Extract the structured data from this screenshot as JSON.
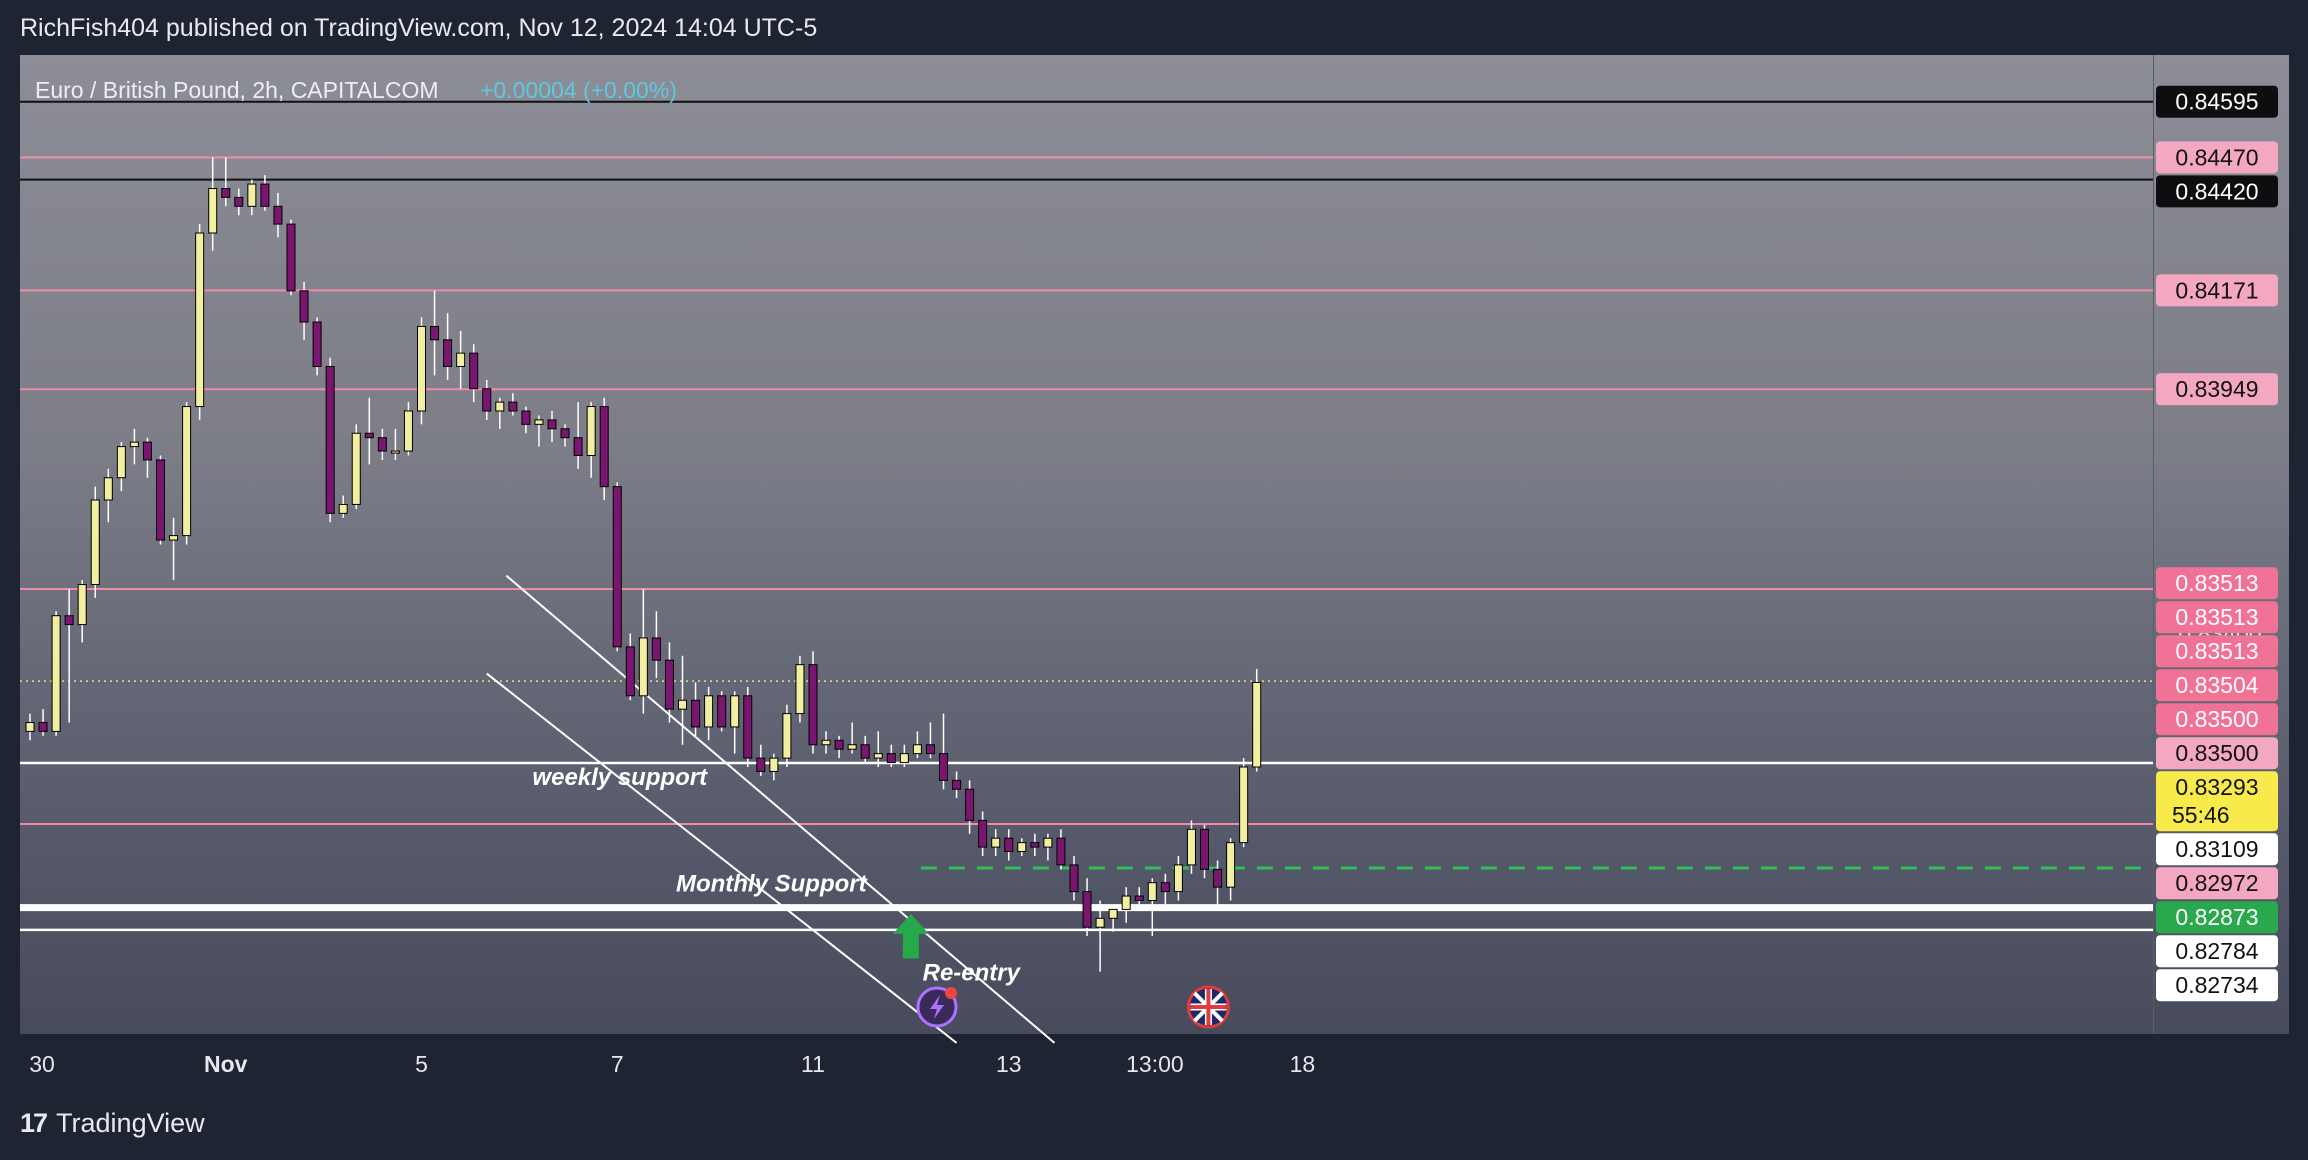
{
  "header": {
    "text": "RichFish404 published on TradingView.com, Nov 12, 2024 14:04 UTC-5"
  },
  "symbol": {
    "name": "Euro / British Pound, 2h, CAPITALCOM",
    "change": "+0.00004 (+0.00%)",
    "change_color": "#5ec8e0"
  },
  "footer": {
    "logo": "17",
    "brand": "TradingView"
  },
  "colors": {
    "up": "#f2f0a0",
    "down": "#7a1670",
    "pink_line": "#f28aa8",
    "white_line": "#ffffff",
    "black_line": "#111111",
    "green": "#27a84a"
  },
  "chart_data": {
    "type": "candlestick",
    "ylim": [
      0.825,
      0.847
    ],
    "x_ticks": [
      {
        "label": "30",
        "i": 0
      },
      {
        "label": "Nov",
        "i": 15
      },
      {
        "label": "5",
        "i": 30
      },
      {
        "label": "7",
        "i": 45
      },
      {
        "label": "11",
        "i": 60
      },
      {
        "label": "13",
        "i": 75
      },
      {
        "label": "13:00",
        "i": 86.2
      },
      {
        "label": "18",
        "i": 97.5
      }
    ],
    "y_ticks": [
      "0.83400",
      "0.82600"
    ],
    "y_tick_values": [
      0.834,
      0.826
    ],
    "price_tags": [
      {
        "label": "0.84595",
        "value": 0.84595,
        "style": "black"
      },
      {
        "label": "0.84470",
        "value": 0.8447,
        "style": "pink"
      },
      {
        "label": "0.84420",
        "value": 0.8442,
        "style": "black"
      },
      {
        "label": "0.84171",
        "value": 0.84171,
        "style": "pink"
      },
      {
        "label": "0.83949",
        "value": 0.83949,
        "style": "pink"
      },
      {
        "label": "0.83513",
        "value": 0.83513,
        "style": "pink-strong"
      },
      {
        "label": "0.83513",
        "value": 0.83513,
        "style": "pink-strong"
      },
      {
        "label": "0.83513",
        "value": 0.83513,
        "style": "pink-strong"
      },
      {
        "label": "0.83504",
        "value": 0.83504,
        "style": "pink-strong"
      },
      {
        "label": "0.83500",
        "value": 0.835,
        "style": "pink-strong"
      },
      {
        "label": "0.83500",
        "value": 0.835,
        "style": "pink"
      },
      {
        "label": "0.83293",
        "value": 0.83293,
        "style": "yellow",
        "sub": "55:46"
      },
      {
        "label": "0.83109",
        "value": 0.83109,
        "style": "white"
      },
      {
        "label": "0.82972",
        "value": 0.82972,
        "style": "pink"
      },
      {
        "label": "0.82873",
        "value": 0.82873,
        "style": "green"
      },
      {
        "label": "0.82784",
        "value": 0.82784,
        "style": "white"
      },
      {
        "label": "0.82734",
        "value": 0.82734,
        "style": "white"
      }
    ],
    "hlines": [
      {
        "value": 0.84595,
        "color": "black"
      },
      {
        "value": 0.8447,
        "color": "pink"
      },
      {
        "value": 0.8442,
        "color": "black"
      },
      {
        "value": 0.84171,
        "color": "pink"
      },
      {
        "value": 0.83949,
        "color": "pink"
      },
      {
        "value": 0.835,
        "color": "pink"
      },
      {
        "value": 0.83109,
        "color": "white"
      },
      {
        "value": 0.82972,
        "color": "pink"
      },
      {
        "value": 0.82784,
        "color": "white-thick"
      },
      {
        "value": 0.82734,
        "color": "white"
      }
    ],
    "current_price": 0.83293,
    "entry_line": {
      "value": 0.82873,
      "from_i": 67.5
    },
    "channel": {
      "upper": [
        [
          36.5,
          0.8353
        ],
        [
          78.5,
          0.8248
        ]
      ],
      "lower": [
        [
          35.0,
          0.8331
        ],
        [
          71.0,
          0.8248
        ]
      ]
    },
    "annotations": [
      {
        "text": "weekly support",
        "i": 38.5,
        "y": 0.8306
      },
      {
        "text": "Monthly  Support",
        "i": 49.5,
        "y": 0.8282
      },
      {
        "text": "Re-entry",
        "i": 68.4,
        "y": 0.8262
      }
    ],
    "arrow": {
      "i": 67.5,
      "y_top": 0.8277,
      "y_bottom": 0.8267
    },
    "event_icons": [
      {
        "name": "lightning-icon",
        "i": 69.5
      },
      {
        "name": "uk-flag-icon",
        "i": 90.3
      }
    ],
    "candles": [
      [
        0.8318,
        0.8322,
        0.8316,
        0.832
      ],
      [
        0.832,
        0.8323,
        0.8317,
        0.8318
      ],
      [
        0.8318,
        0.8345,
        0.8317,
        0.8344
      ],
      [
        0.8344,
        0.835,
        0.832,
        0.8342
      ],
      [
        0.8342,
        0.8352,
        0.8338,
        0.8351
      ],
      [
        0.8351,
        0.8373,
        0.8348,
        0.837
      ],
      [
        0.837,
        0.8377,
        0.8365,
        0.8375
      ],
      [
        0.8375,
        0.8383,
        0.8372,
        0.8382
      ],
      [
        0.8382,
        0.8386,
        0.8378,
        0.8383
      ],
      [
        0.8383,
        0.8384,
        0.8375,
        0.8379
      ],
      [
        0.8379,
        0.838,
        0.836,
        0.8361
      ],
      [
        0.8361,
        0.8366,
        0.8352,
        0.8362
      ],
      [
        0.8362,
        0.8392,
        0.836,
        0.8391
      ],
      [
        0.8391,
        0.8432,
        0.8388,
        0.843
      ],
      [
        0.843,
        0.8447,
        0.8426,
        0.844
      ],
      [
        0.844,
        0.8447,
        0.8436,
        0.8438
      ],
      [
        0.8438,
        0.844,
        0.8434,
        0.8436
      ],
      [
        0.8436,
        0.8442,
        0.8434,
        0.8441
      ],
      [
        0.8441,
        0.8443,
        0.8435,
        0.8436
      ],
      [
        0.8436,
        0.8439,
        0.8429,
        0.8432
      ],
      [
        0.8432,
        0.8433,
        0.8416,
        0.8417
      ],
      [
        0.8417,
        0.8419,
        0.8406,
        0.841
      ],
      [
        0.841,
        0.8411,
        0.8398,
        0.84
      ],
      [
        0.84,
        0.8402,
        0.8365,
        0.8367
      ],
      [
        0.8367,
        0.8371,
        0.8366,
        0.8369
      ],
      [
        0.8369,
        0.8387,
        0.8368,
        0.8385
      ],
      [
        0.8385,
        0.8393,
        0.8378,
        0.8384
      ],
      [
        0.8384,
        0.8386,
        0.8379,
        0.8381
      ],
      [
        0.8381,
        0.8386,
        0.8379,
        0.8381
      ],
      [
        0.8381,
        0.8392,
        0.838,
        0.839
      ],
      [
        0.839,
        0.8411,
        0.8387,
        0.8409
      ],
      [
        0.8409,
        0.8417,
        0.8398,
        0.8406
      ],
      [
        0.8406,
        0.8412,
        0.8397,
        0.84
      ],
      [
        0.84,
        0.8408,
        0.8395,
        0.8403
      ],
      [
        0.8403,
        0.8405,
        0.8392,
        0.8395
      ],
      [
        0.8395,
        0.8397,
        0.8388,
        0.839
      ],
      [
        0.839,
        0.8393,
        0.8386,
        0.8392
      ],
      [
        0.8392,
        0.8394,
        0.8389,
        0.839
      ],
      [
        0.839,
        0.8391,
        0.8385,
        0.8387
      ],
      [
        0.8387,
        0.8389,
        0.8382,
        0.8388
      ],
      [
        0.8388,
        0.839,
        0.8383,
        0.8386
      ],
      [
        0.8386,
        0.8387,
        0.8382,
        0.8384
      ],
      [
        0.8384,
        0.8392,
        0.8377,
        0.838
      ],
      [
        0.838,
        0.8392,
        0.8375,
        0.8391
      ],
      [
        0.8391,
        0.8393,
        0.837,
        0.8373
      ],
      [
        0.8373,
        0.8374,
        0.8336,
        0.8337
      ],
      [
        0.8337,
        0.834,
        0.8325,
        0.8326
      ],
      [
        0.8326,
        0.835,
        0.8322,
        0.8339
      ],
      [
        0.8339,
        0.8345,
        0.833,
        0.8334
      ],
      [
        0.8334,
        0.8338,
        0.832,
        0.8323
      ],
      [
        0.8323,
        0.8335,
        0.8315,
        0.8325
      ],
      [
        0.8325,
        0.8329,
        0.8317,
        0.8319
      ],
      [
        0.8319,
        0.8328,
        0.8316,
        0.8326
      ],
      [
        0.8326,
        0.8327,
        0.8318,
        0.8319
      ],
      [
        0.8319,
        0.8327,
        0.8313,
        0.8326
      ],
      [
        0.8326,
        0.8328,
        0.831,
        0.8312
      ],
      [
        0.8312,
        0.8315,
        0.8308,
        0.8309
      ],
      [
        0.8309,
        0.8313,
        0.8307,
        0.8312
      ],
      [
        0.8312,
        0.8324,
        0.831,
        0.8322
      ],
      [
        0.8322,
        0.8335,
        0.832,
        0.8333
      ],
      [
        0.8333,
        0.8336,
        0.8313,
        0.8315
      ],
      [
        0.8315,
        0.8318,
        0.8313,
        0.8316
      ],
      [
        0.8316,
        0.8317,
        0.8312,
        0.8314
      ],
      [
        0.8314,
        0.832,
        0.8313,
        0.8315
      ],
      [
        0.8315,
        0.8317,
        0.8311,
        0.8312
      ],
      [
        0.8312,
        0.8318,
        0.831,
        0.8313
      ],
      [
        0.8313,
        0.8315,
        0.831,
        0.8311
      ],
      [
        0.8311,
        0.8315,
        0.831,
        0.8313
      ],
      [
        0.8313,
        0.8318,
        0.8312,
        0.8315
      ],
      [
        0.8315,
        0.832,
        0.8312,
        0.8313
      ],
      [
        0.8313,
        0.8322,
        0.8305,
        0.8307
      ],
      [
        0.8307,
        0.8309,
        0.8303,
        0.8305
      ],
      [
        0.8305,
        0.8307,
        0.8295,
        0.8298
      ],
      [
        0.8298,
        0.83,
        0.829,
        0.8292
      ],
      [
        0.8292,
        0.8296,
        0.829,
        0.8294
      ],
      [
        0.8294,
        0.8296,
        0.8289,
        0.8291
      ],
      [
        0.8291,
        0.8294,
        0.829,
        0.8293
      ],
      [
        0.8293,
        0.8295,
        0.829,
        0.8292
      ],
      [
        0.8292,
        0.8295,
        0.8289,
        0.8294
      ],
      [
        0.8294,
        0.8296,
        0.8287,
        0.8288
      ],
      [
        0.8288,
        0.829,
        0.828,
        0.8282
      ],
      [
        0.8282,
        0.8285,
        0.8272,
        0.8274
      ],
      [
        0.8274,
        0.828,
        0.8264,
        0.8276
      ],
      [
        0.8276,
        0.8279,
        0.8273,
        0.8278
      ],
      [
        0.8278,
        0.8283,
        0.8275,
        0.8281
      ],
      [
        0.8281,
        0.8283,
        0.8278,
        0.828
      ],
      [
        0.828,
        0.8285,
        0.8272,
        0.8284
      ],
      [
        0.8284,
        0.8286,
        0.8279,
        0.8282
      ],
      [
        0.8282,
        0.829,
        0.828,
        0.8288
      ],
      [
        0.8288,
        0.8298,
        0.8286,
        0.8296
      ],
      [
        0.8296,
        0.8297,
        0.8285,
        0.8287
      ],
      [
        0.8287,
        0.8289,
        0.8279,
        0.8283
      ],
      [
        0.8283,
        0.8294,
        0.828,
        0.8293
      ],
      [
        0.8293,
        0.8312,
        0.8292,
        0.831
      ],
      [
        0.831,
        0.8332,
        0.8309,
        0.8329
      ]
    ]
  }
}
